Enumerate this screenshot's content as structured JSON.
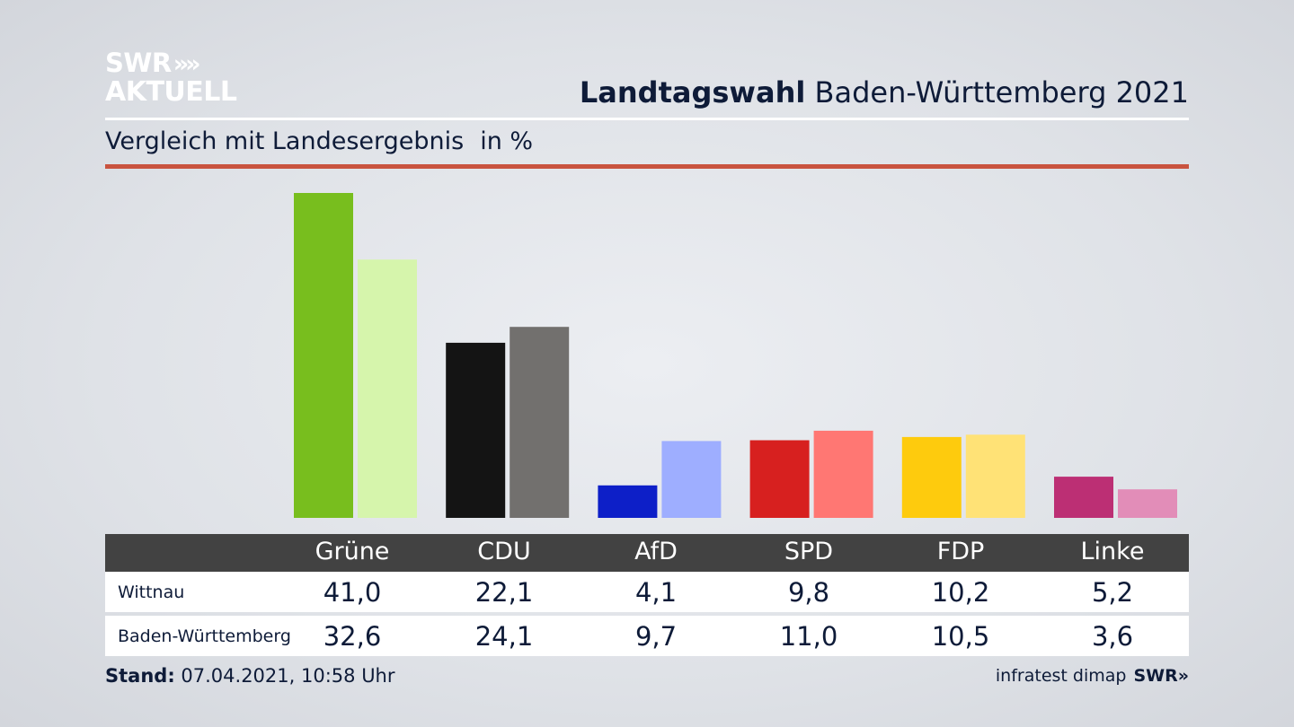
{
  "brand": {
    "logo_line1": "SWR",
    "logo_line2": "AKTUELL",
    "chevrons": "»"
  },
  "header": {
    "title_bold": "Landtagswahl",
    "title_rest": "Baden-Württemberg 2021",
    "subtitle": "Vergleich mit Landesergebnis",
    "unit": "in %"
  },
  "table": {
    "rows": [
      {
        "label": "Wittnau",
        "values": [
          "41,0",
          "22,1",
          "4,1",
          "9,8",
          "10,2",
          "5,2"
        ]
      },
      {
        "label": "Baden-Württemberg",
        "values": [
          "32,6",
          "24,1",
          "9,7",
          "11,0",
          "10,5",
          "3,6"
        ]
      }
    ]
  },
  "footer": {
    "stand_label": "Stand:",
    "stand_value": "07.04.2021, 10:58 Uhr",
    "source": "infratest dimap",
    "source_brand": "SWR»"
  },
  "colors": {
    "accent_rule": "#c9533f",
    "table_header": "#424242",
    "Grüne": [
      "#78be1e",
      "#d6f5ac"
    ],
    "CDU": [
      "#141414",
      "#72706e"
    ],
    "AfD": [
      "#0d1fc8",
      "#9eaeff"
    ],
    "SPD": [
      "#d7201f",
      "#ff7773"
    ],
    "FDP": [
      "#fecb0d",
      "#ffe276"
    ],
    "Linke": [
      "#bc2f74",
      "#e28db8"
    ]
  },
  "chart_data": {
    "type": "bar",
    "categories": [
      "Grüne",
      "CDU",
      "AfD",
      "SPD",
      "FDP",
      "Linke"
    ],
    "series": [
      {
        "name": "Wittnau",
        "values": [
          41.0,
          22.1,
          4.1,
          9.8,
          10.2,
          5.2
        ]
      },
      {
        "name": "Baden-Württemberg",
        "values": [
          32.6,
          24.1,
          9.7,
          11.0,
          10.5,
          3.6
        ]
      }
    ],
    "ylim": [
      0,
      41.0
    ],
    "grid": false,
    "legend": "table below chart"
  }
}
